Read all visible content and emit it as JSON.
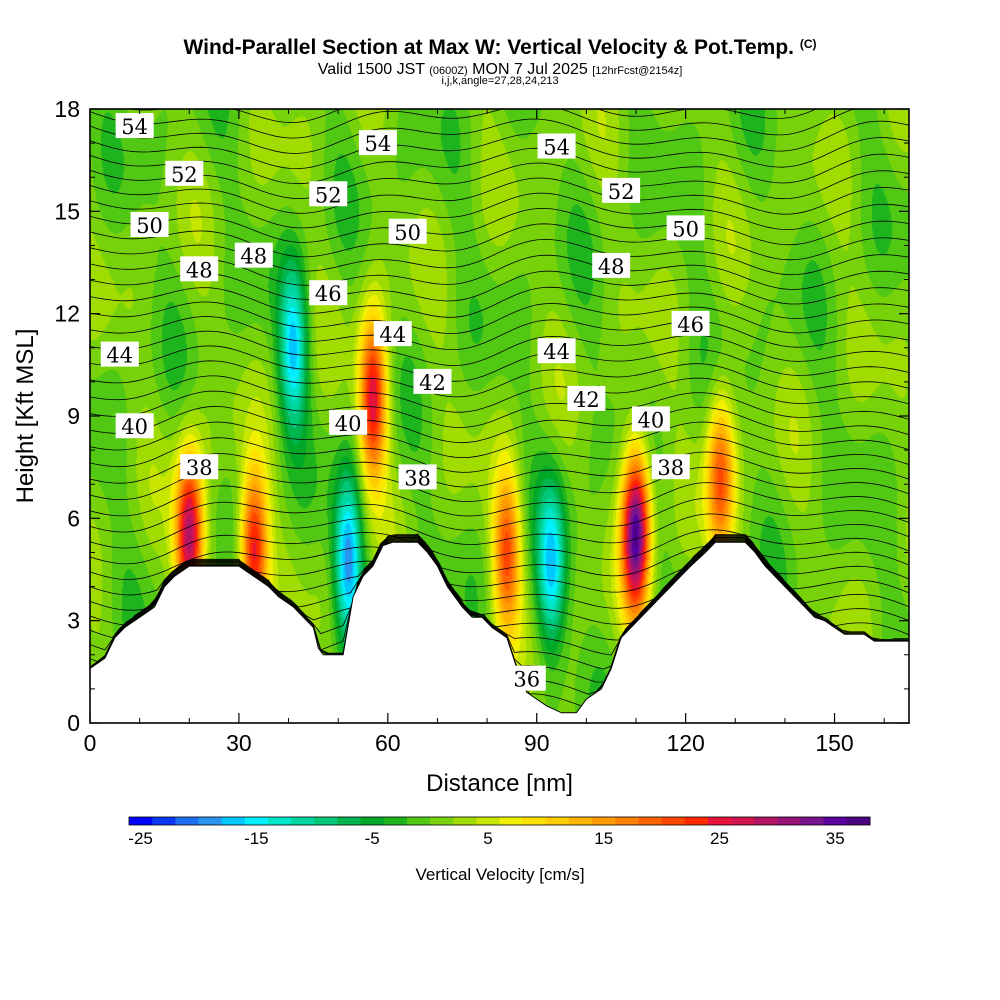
{
  "header": {
    "title": "Wind-Parallel Section at Max W: Vertical Velocity & Pot.Temp.",
    "copyright": "(C)",
    "valid_prefix": "Valid 1500 JST",
    "valid_utc": "(0600Z)",
    "valid_date": "MON 7 Jul 2025",
    "forecast": "[12hrFcst@2154z]",
    "indices": "i,j,k,angle=27,28,24,213"
  },
  "chart_data": {
    "type": "heatmap",
    "xlabel": "Distance [nm]",
    "ylabel": "Height [Kft MSL]",
    "xlim": [
      0,
      165
    ],
    "ylim": [
      0,
      18
    ],
    "x_ticks": [
      "0",
      "30",
      "60",
      "90",
      "120",
      "150"
    ],
    "x_tick_values": [
      0,
      30,
      60,
      90,
      120,
      150
    ],
    "y_ticks": [
      "0",
      "3",
      "6",
      "9",
      "12",
      "15",
      "18"
    ],
    "y_tick_values": [
      0,
      3,
      6,
      9,
      12,
      15,
      18
    ],
    "colorbar": {
      "label": "Vertical Velocity [cm/s]",
      "min": -26,
      "max": 38,
      "step": 2,
      "tick_labels": [
        "-25",
        "-15",
        "-5",
        "5",
        "15",
        "25",
        "35"
      ],
      "tick_values": [
        -25,
        -15,
        -5,
        5,
        15,
        25,
        35
      ],
      "colors": [
        "#0000ff",
        "#0a37f5",
        "#1e6ef0",
        "#2896f0",
        "#00c8ff",
        "#00f0ff",
        "#00e6c8",
        "#00d7a0",
        "#00c878",
        "#00b450",
        "#00a828",
        "#1eb41e",
        "#50c814",
        "#78d20a",
        "#a0dc00",
        "#c8e600",
        "#f0f000",
        "#ffe100",
        "#ffcd00",
        "#ffb400",
        "#ff9b00",
        "#ff8200",
        "#ff6400",
        "#ff4600",
        "#ff2800",
        "#e6143c",
        "#d21450",
        "#b41464",
        "#961478",
        "#78148c",
        "#5a00a0",
        "#4b0082"
      ]
    },
    "terrain_kft": [
      [
        0,
        1.6
      ],
      [
        3,
        1.9
      ],
      [
        5,
        2.5
      ],
      [
        7,
        2.8
      ],
      [
        10,
        3.1
      ],
      [
        13,
        3.4
      ],
      [
        15,
        4.0
      ],
      [
        17,
        4.3
      ],
      [
        20,
        4.6
      ],
      [
        23,
        4.6
      ],
      [
        27,
        4.6
      ],
      [
        30,
        4.6
      ],
      [
        33,
        4.3
      ],
      [
        36,
        4.0
      ],
      [
        38,
        3.7
      ],
      [
        41,
        3.4
      ],
      [
        43,
        3.1
      ],
      [
        45,
        2.8
      ],
      [
        46,
        2.2
      ],
      [
        47,
        2.0
      ],
      [
        49,
        2.0
      ],
      [
        51,
        2.0
      ],
      [
        53,
        3.7
      ],
      [
        55,
        4.3
      ],
      [
        57,
        4.6
      ],
      [
        59,
        5.2
      ],
      [
        61,
        5.3
      ],
      [
        63,
        5.3
      ],
      [
        66,
        5.3
      ],
      [
        68,
        5.0
      ],
      [
        70,
        4.6
      ],
      [
        72,
        4.0
      ],
      [
        75,
        3.4
      ],
      [
        77,
        3.1
      ],
      [
        79,
        3.1
      ],
      [
        81,
        2.8
      ],
      [
        84,
        2.5
      ],
      [
        86,
        1.6
      ],
      [
        88,
        0.9
      ],
      [
        90,
        0.7
      ],
      [
        92,
        0.5
      ],
      [
        95,
        0.3
      ],
      [
        98,
        0.3
      ],
      [
        100,
        0.7
      ],
      [
        103,
        1.0
      ],
      [
        105,
        1.6
      ],
      [
        107,
        2.5
      ],
      [
        109,
        2.8
      ],
      [
        111,
        3.1
      ],
      [
        113,
        3.4
      ],
      [
        115,
        3.7
      ],
      [
        117,
        4.0
      ],
      [
        119,
        4.3
      ],
      [
        121,
        4.6
      ],
      [
        124,
        5.0
      ],
      [
        126,
        5.3
      ],
      [
        129,
        5.3
      ],
      [
        132,
        5.3
      ],
      [
        134,
        5.0
      ],
      [
        136,
        4.6
      ],
      [
        138,
        4.3
      ],
      [
        140,
        4.0
      ],
      [
        142,
        3.7
      ],
      [
        144,
        3.4
      ],
      [
        146,
        3.1
      ],
      [
        148,
        3.0
      ],
      [
        150,
        2.8
      ],
      [
        152,
        2.6
      ],
      [
        156,
        2.6
      ],
      [
        158,
        2.4
      ],
      [
        165,
        2.4
      ]
    ],
    "w_features": [
      {
        "x": 20,
        "z": 5.5,
        "w": 30
      },
      {
        "x": 33,
        "z": 5.0,
        "w": 26
      },
      {
        "x": 57,
        "z": 9.5,
        "w": 26
      },
      {
        "x": 110,
        "z": 5.6,
        "w": 36
      },
      {
        "x": 127,
        "z": 7.2,
        "w": 20
      },
      {
        "x": 84,
        "z": 5.0,
        "w": 20
      },
      {
        "x": 52,
        "z": 4.8,
        "w": -19
      },
      {
        "x": 93,
        "z": 4.6,
        "w": -16
      },
      {
        "x": 41,
        "z": 11.0,
        "w": -16
      }
    ],
    "theta_contours": [
      {
        "label": "36",
        "x": 88,
        "z": 1.3
      },
      {
        "label": "38",
        "x": 22,
        "z": 7.5
      },
      {
        "label": "38",
        "x": 66,
        "z": 7.2
      },
      {
        "label": "38",
        "x": 117,
        "z": 7.5
      },
      {
        "label": "40",
        "x": 9,
        "z": 8.7
      },
      {
        "label": "40",
        "x": 52,
        "z": 8.8
      },
      {
        "label": "40",
        "x": 113,
        "z": 8.9
      },
      {
        "label": "42",
        "x": 69,
        "z": 10.0
      },
      {
        "label": "42",
        "x": 100,
        "z": 9.5
      },
      {
        "label": "44",
        "x": 6,
        "z": 10.8
      },
      {
        "label": "44",
        "x": 61,
        "z": 11.4
      },
      {
        "label": "44",
        "x": 94,
        "z": 10.9
      },
      {
        "label": "46",
        "x": 48,
        "z": 12.6
      },
      {
        "label": "46",
        "x": 121,
        "z": 11.7
      },
      {
        "label": "48",
        "x": 22,
        "z": 13.3
      },
      {
        "label": "48",
        "x": 33,
        "z": 13.7
      },
      {
        "label": "48",
        "x": 105,
        "z": 13.4
      },
      {
        "label": "50",
        "x": 12,
        "z": 14.6
      },
      {
        "label": "50",
        "x": 64,
        "z": 14.4
      },
      {
        "label": "50",
        "x": 120,
        "z": 14.5
      },
      {
        "label": "52",
        "x": 19,
        "z": 16.1
      },
      {
        "label": "52",
        "x": 48,
        "z": 15.5
      },
      {
        "label": "52",
        "x": 107,
        "z": 15.6
      },
      {
        "label": "54",
        "x": 9,
        "z": 17.5
      },
      {
        "label": "54",
        "x": 58,
        "z": 17.0
      },
      {
        "label": "54",
        "x": 94,
        "z": 16.9
      }
    ]
  }
}
